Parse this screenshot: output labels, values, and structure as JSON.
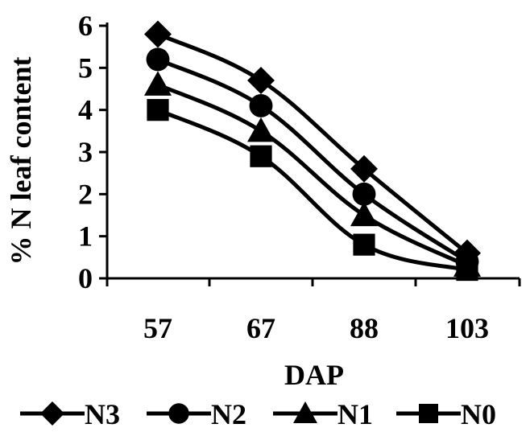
{
  "chart_data": {
    "type": "line",
    "title": "",
    "xlabel": "DAP",
    "ylabel": "% N leaf content",
    "categories": [
      "57",
      "67",
      "88",
      "103"
    ],
    "ylim": [
      0,
      6
    ],
    "yticks": [
      "0",
      "1",
      "2",
      "3",
      "4",
      "5",
      "6"
    ],
    "grid": false,
    "legend_position": "bottom",
    "line_color": "#000000",
    "series": [
      {
        "name": "N3",
        "marker": "diamond",
        "values": [
          5.8,
          4.7,
          2.6,
          0.6
        ]
      },
      {
        "name": "N2",
        "marker": "circle",
        "values": [
          5.2,
          4.1,
          2.0,
          0.4
        ]
      },
      {
        "name": "N1",
        "marker": "triangle",
        "values": [
          4.6,
          3.5,
          1.5,
          0.3
        ]
      },
      {
        "name": "N0",
        "marker": "square",
        "values": [
          4.0,
          2.9,
          0.8,
          0.2
        ]
      }
    ]
  }
}
